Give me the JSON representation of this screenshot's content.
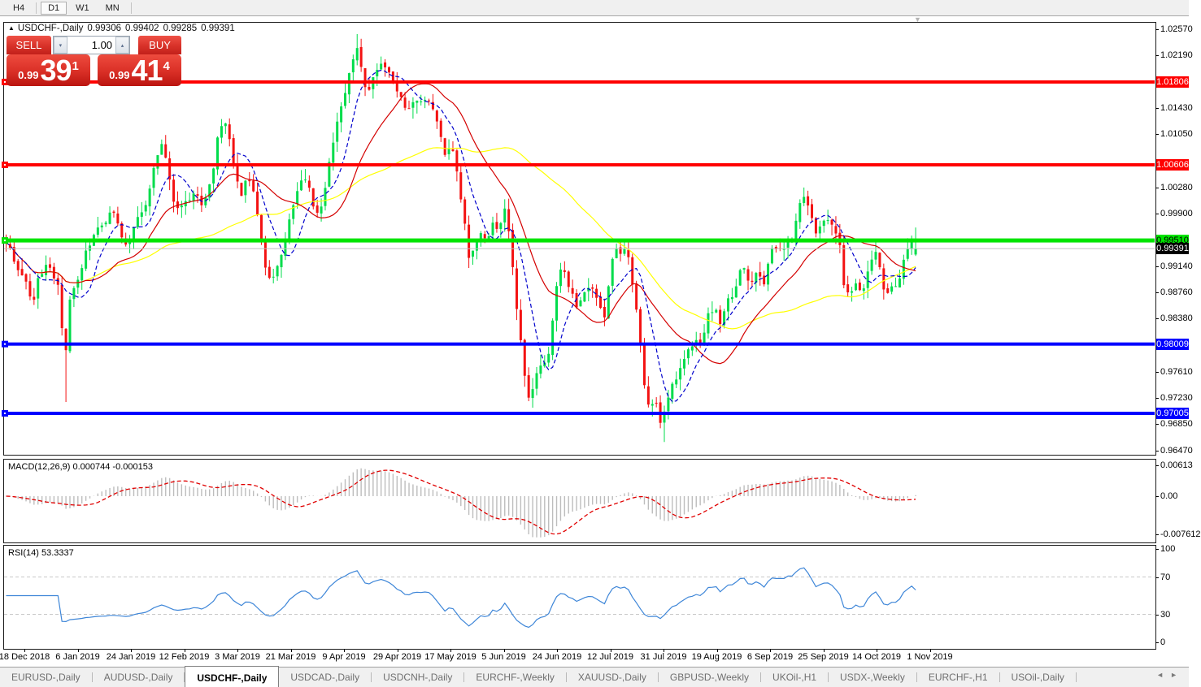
{
  "toolbar": {
    "timeframes": [
      "H4",
      "D1",
      "W1",
      "MN"
    ],
    "active_timeframe": "D1"
  },
  "title_bar": {
    "collapse_arrow": "▲",
    "symbol": "USDCHF-,Daily",
    "open": "0.99306",
    "high": "0.99402",
    "low": "0.99285",
    "close": "0.99391"
  },
  "trade_panel": {
    "sell_label": "SELL",
    "buy_label": "BUY",
    "volume": "1.00",
    "spin_down": "▾",
    "spin_up": "▴",
    "sell_prefix": "0.99",
    "sell_big": "39",
    "sell_sup": "1",
    "buy_prefix": "0.99",
    "buy_big": "41",
    "buy_sup": "4"
  },
  "shift_marker": "▼",
  "price_axis": {
    "ticks": [
      {
        "label": "1.02570",
        "price": 1.0257
      },
      {
        "label": "1.02190",
        "price": 1.0219
      },
      {
        "label": "1.01430",
        "price": 1.0143
      },
      {
        "label": "1.01050",
        "price": 1.0105
      },
      {
        "label": "1.00280",
        "price": 1.0028
      },
      {
        "label": "0.99900",
        "price": 0.999
      },
      {
        "label": "0.99140",
        "price": 0.9914
      },
      {
        "label": "0.98760",
        "price": 0.9876
      },
      {
        "label": "0.98380",
        "price": 0.9838
      },
      {
        "label": "0.97610",
        "price": 0.9761
      },
      {
        "label": "0.97230",
        "price": 0.9723
      },
      {
        "label": "0.96850",
        "price": 0.9685
      },
      {
        "label": "0.96470",
        "price": 0.9647
      }
    ],
    "badges": [
      {
        "label": "1.01806",
        "price": 1.01806,
        "bg": "#ff0000",
        "fg": "#ffffff"
      },
      {
        "label": "1.00606",
        "price": 1.00606,
        "bg": "#ff0000",
        "fg": "#ffffff"
      },
      {
        "label": "0.99510",
        "price": 0.9951,
        "bg": "#00e400",
        "fg": "#000000"
      },
      {
        "label": "0.99391",
        "price": 0.99391,
        "bg": "#000000",
        "fg": "#ffffff"
      },
      {
        "label": "0.98009",
        "price": 0.98009,
        "bg": "#0000ff",
        "fg": "#ffffff"
      },
      {
        "label": "0.97005",
        "price": 0.97005,
        "bg": "#0000ff",
        "fg": "#ffffff"
      }
    ]
  },
  "indicator_macd": {
    "label": "MACD(12,26,9) 0.000744 -0.000153",
    "ticks": [
      {
        "label": "0.00613",
        "value": 0.00613
      },
      {
        "label": "0.00",
        "value": 0
      },
      {
        "label": "-0.007612",
        "value": -0.007612
      }
    ]
  },
  "indicator_rsi": {
    "label": "RSI(14) 53.3337",
    "ticks": [
      {
        "label": "100",
        "value": 100
      },
      {
        "label": "70",
        "value": 70
      },
      {
        "label": "30",
        "value": 30
      },
      {
        "label": "0",
        "value": 0
      }
    ],
    "levels": [
      70,
      30
    ]
  },
  "date_axis": {
    "labels": [
      "18 Dec 2018",
      "6 Jan 2019",
      "24 Jan 2019",
      "12 Feb 2019",
      "3 Mar 2019",
      "21 Mar 2019",
      "9 Apr 2019",
      "29 Apr 2019",
      "17 May 2019",
      "5 Jun 2019",
      "24 Jun 2019",
      "12 Jul 2019",
      "31 Jul 2019",
      "19 Aug 2019",
      "6 Sep 2019",
      "25 Sep 2019",
      "14 Oct 2019",
      "1 Nov 2019"
    ]
  },
  "tabs": {
    "items": [
      "EURUSD-,Daily",
      "AUDUSD-,Daily",
      "USDCHF-,Daily",
      "USDCAD-,Daily",
      "USDCNH-,Daily",
      "EURCHF-,Weekly",
      "XAUUSD-,Daily",
      "GBPUSD-,Weekly",
      "UKOil-,H1",
      "USDX-,Weekly",
      "EURCHF-,H1",
      "USOil-,Daily"
    ],
    "active_index": 2,
    "scroll_left": "◄",
    "scroll_right": "►"
  },
  "chart_data": {
    "type": "candlestick",
    "symbol": "USDCHF",
    "timeframe": "Daily",
    "title": "USDCHF-,Daily 0.99306 0.99402 0.99285 0.99391",
    "visible_range": {
      "price_min": 0.9647,
      "price_max": 1.0257,
      "date_start": "18 Dec 2018",
      "date_end": "8 Nov 2019"
    },
    "num_candles": 229,
    "current_ohlc": {
      "open": 0.99306,
      "high": 0.99402,
      "low": 0.99285,
      "close": 0.99391
    },
    "price_path_anchors": [
      [
        8,
        0.9952
      ],
      [
        20,
        0.9915
      ],
      [
        32,
        0.989
      ],
      [
        40,
        0.9862
      ],
      [
        48,
        0.9898
      ],
      [
        58,
        0.9922
      ],
      [
        66,
        0.9898
      ],
      [
        74,
        0.9888
      ],
      [
        79,
        0.9748
      ],
      [
        84,
        0.9862
      ],
      [
        95,
        0.9888
      ],
      [
        105,
        0.9932
      ],
      [
        118,
        0.9968
      ],
      [
        128,
        0.9978
      ],
      [
        138,
        0.9995
      ],
      [
        146,
        0.9975
      ],
      [
        154,
        0.9945
      ],
      [
        162,
        0.9958
      ],
      [
        170,
        0.9985
      ],
      [
        178,
        1.0
      ],
      [
        186,
        1.0035
      ],
      [
        193,
        1.0075
      ],
      [
        198,
        1.0095
      ],
      [
        204,
        1.0075
      ],
      [
        212,
        1.001
      ],
      [
        220,
        0.999
      ],
      [
        228,
        1.0005
      ],
      [
        238,
        1.002
      ],
      [
        248,
        1.0005
      ],
      [
        256,
        1.0022
      ],
      [
        263,
        1.006
      ],
      [
        270,
        1.0115
      ],
      [
        278,
        1.0125
      ],
      [
        284,
        1.008
      ],
      [
        291,
        1.004
      ],
      [
        297,
        1.002
      ],
      [
        304,
        1.0042
      ],
      [
        311,
        1.0028
      ],
      [
        318,
        0.9975
      ],
      [
        325,
        0.992
      ],
      [
        333,
        0.989
      ],
      [
        341,
        0.9912
      ],
      [
        348,
        0.9935
      ],
      [
        356,
        0.9978
      ],
      [
        364,
        1.0012
      ],
      [
        372,
        1.0048
      ],
      [
        380,
        1.0028
      ],
      [
        388,
        0.9988
      ],
      [
        396,
        1.0
      ],
      [
        404,
        1.0058
      ],
      [
        412,
        1.011
      ],
      [
        420,
        1.015
      ],
      [
        428,
        1.0185
      ],
      [
        434,
        1.0215
      ],
      [
        440,
        1.0228
      ],
      [
        446,
        1.0192
      ],
      [
        452,
        1.0165
      ],
      [
        460,
        1.0188
      ],
      [
        468,
        1.0205
      ],
      [
        476,
        1.0202
      ],
      [
        484,
        1.0185
      ],
      [
        492,
        1.016
      ],
      [
        499,
        1.0135
      ],
      [
        507,
        1.015
      ],
      [
        515,
        1.0158
      ],
      [
        523,
        1.0152
      ],
      [
        531,
        1.0148
      ],
      [
        539,
        1.0118
      ],
      [
        547,
        1.0072
      ],
      [
        555,
        1.0088
      ],
      [
        563,
        1.004
      ],
      [
        570,
        0.999
      ],
      [
        577,
        0.9922
      ],
      [
        584,
        0.9942
      ],
      [
        591,
        0.9968
      ],
      [
        598,
        0.9948
      ],
      [
        606,
        0.9978
      ],
      [
        613,
        0.9962
      ],
      [
        621,
        1.0
      ],
      [
        629,
        0.9935
      ],
      [
        637,
        0.9832
      ],
      [
        645,
        0.9762
      ],
      [
        652,
        0.9716
      ],
      [
        659,
        0.9752
      ],
      [
        666,
        0.9772
      ],
      [
        673,
        0.9772
      ],
      [
        681,
        0.9852
      ],
      [
        688,
        0.9912
      ],
      [
        696,
        0.9898
      ],
      [
        703,
        0.9872
      ],
      [
        711,
        0.9852
      ],
      [
        719,
        0.9872
      ],
      [
        727,
        0.9882
      ],
      [
        735,
        0.9862
      ],
      [
        743,
        0.9838
      ],
      [
        751,
        0.9912
      ],
      [
        757,
        0.9946
      ],
      [
        764,
        0.9932
      ],
      [
        771,
        0.9936
      ],
      [
        779,
        0.9885
      ],
      [
        786,
        0.9815
      ],
      [
        793,
        0.9738
      ],
      [
        800,
        0.9702
      ],
      [
        806,
        0.9726
      ],
      [
        812,
        0.9682
      ],
      [
        818,
        0.9706
      ],
      [
        825,
        0.9742
      ],
      [
        833,
        0.9752
      ],
      [
        841,
        0.9782
      ],
      [
        849,
        0.9792
      ],
      [
        856,
        0.9812
      ],
      [
        863,
        0.9792
      ],
      [
        871,
        0.9846
      ],
      [
        879,
        0.9856
      ],
      [
        886,
        0.9832
      ],
      [
        893,
        0.9862
      ],
      [
        901,
        0.9872
      ],
      [
        909,
        0.9902
      ],
      [
        916,
        0.9916
      ],
      [
        923,
        0.9882
      ],
      [
        931,
        0.9902
      ],
      [
        939,
        0.9886
      ],
      [
        946,
        0.9926
      ],
      [
        953,
        0.9946
      ],
      [
        961,
        0.9932
      ],
      [
        969,
        0.9956
      ],
      [
        976,
        0.9956
      ],
      [
        983,
        1.0002
      ],
      [
        989,
        1.0016
      ],
      [
        996,
        0.9986
      ],
      [
        1003,
        0.9966
      ],
      [
        1011,
        0.9972
      ],
      [
        1019,
        0.9982
      ],
      [
        1026,
        0.9976
      ],
      [
        1033,
        0.9942
      ],
      [
        1039,
        0.9872
      ],
      [
        1046,
        0.9882
      ],
      [
        1053,
        0.9886
      ],
      [
        1061,
        0.9872
      ],
      [
        1069,
        0.9922
      ],
      [
        1076,
        0.9936
      ],
      [
        1083,
        0.9902
      ],
      [
        1089,
        0.9872
      ],
      [
        1096,
        0.9882
      ],
      [
        1103,
        0.9892
      ],
      [
        1109,
        0.9906
      ],
      [
        1116,
        0.9942
      ],
      [
        1123,
        0.9956
      ],
      [
        1129,
        0.9939
      ]
    ],
    "extremes": [
      {
        "i": 15,
        "low": 0.9717
      },
      {
        "i": 88,
        "high": 1.025
      },
      {
        "i": 165,
        "low": 0.9659
      }
    ],
    "horizontal_lines": [
      {
        "price": 1.01806,
        "color": "#ff0000",
        "width": 4
      },
      {
        "price": 1.00606,
        "color": "#ff0000",
        "width": 4
      },
      {
        "price": 0.9951,
        "color": "#00e400",
        "width": 5
      },
      {
        "price": 0.98009,
        "color": "#0000ff",
        "width": 4
      },
      {
        "price": 0.97005,
        "color": "#0000ff",
        "width": 4
      }
    ],
    "current_price_line": {
      "price": 0.99391,
      "color": "#c0c0c0"
    },
    "moving_averages": [
      {
        "period": 8,
        "color": "#0000cc",
        "style": "dashed"
      },
      {
        "period": 21,
        "color": "#d40000",
        "style": "solid"
      },
      {
        "period": 55,
        "color": "#ffff00",
        "style": "solid"
      }
    ],
    "candle_colors": {
      "up": "#00dc4b",
      "down": "#f31212"
    },
    "macd": {
      "fast": 12,
      "slow": 26,
      "signal": 9,
      "current_macd": 0.000744,
      "current_signal": -0.000153,
      "axis_range": [
        -0.007612,
        0.00613
      ],
      "histogram_color": "#bdbdbd",
      "signal_color": "#e00000"
    },
    "rsi": {
      "period": 14,
      "current": 53.3337,
      "axis_range": [
        0,
        100
      ],
      "levels": [
        70,
        30
      ],
      "color": "#3e86d8"
    }
  }
}
